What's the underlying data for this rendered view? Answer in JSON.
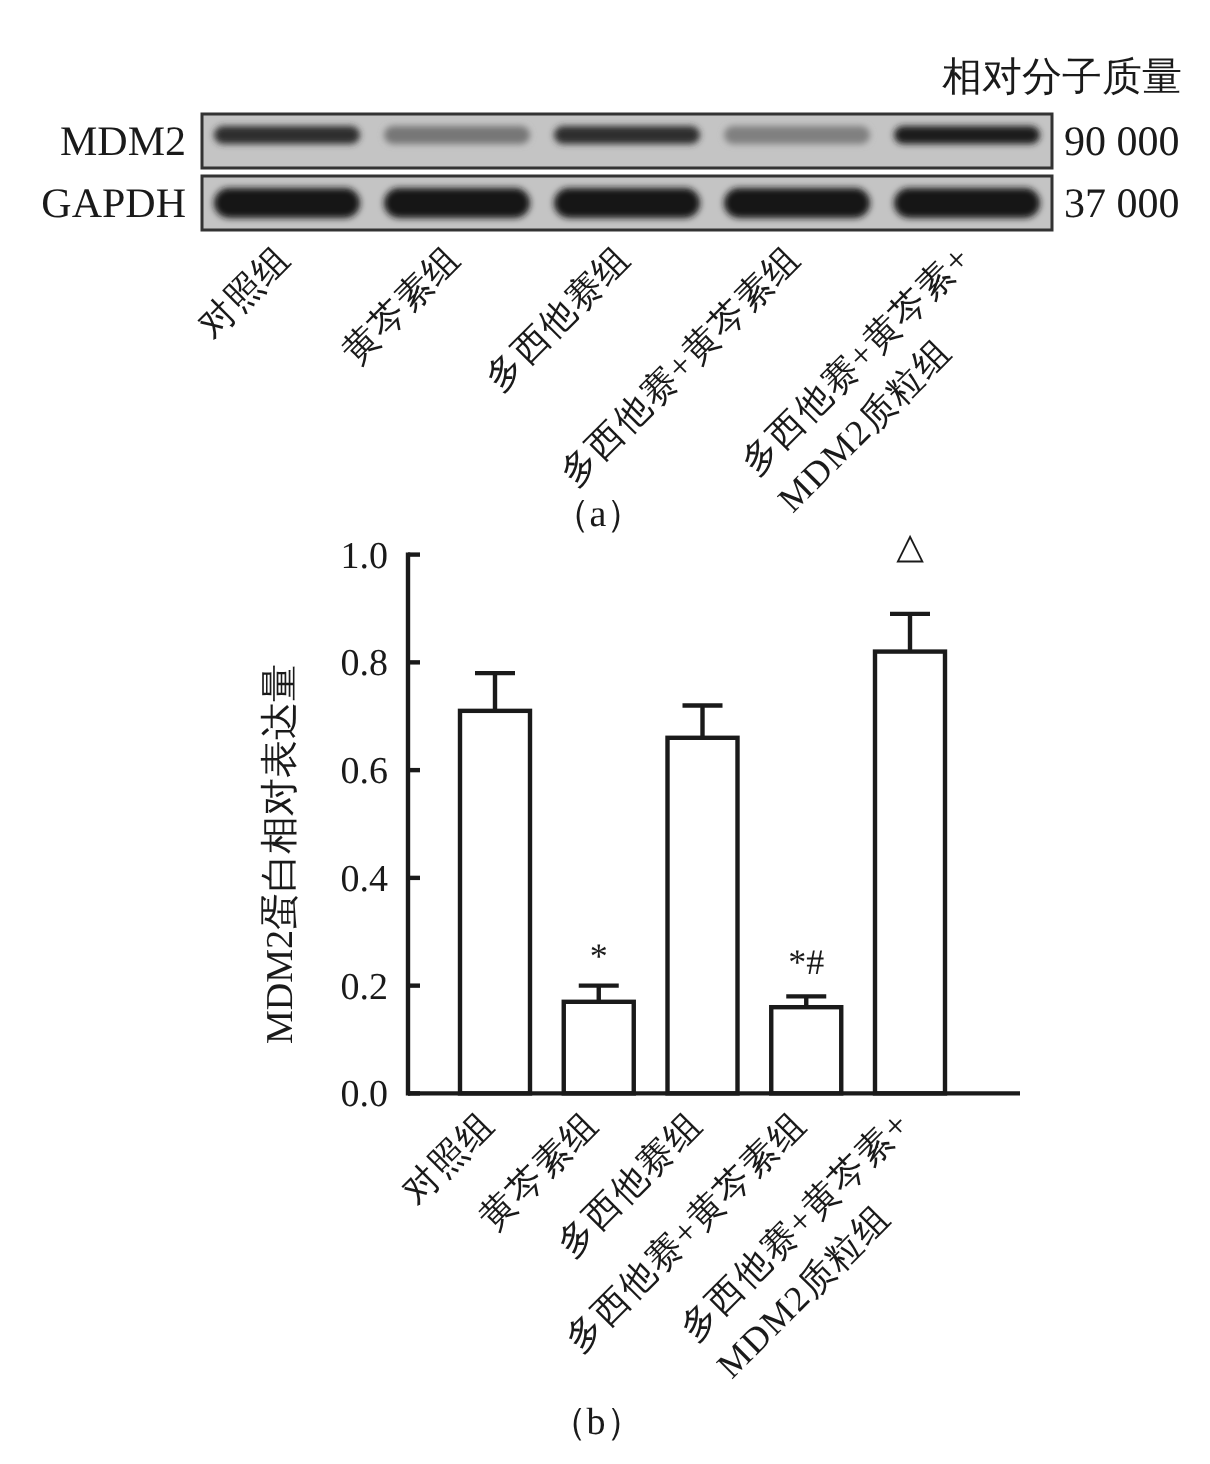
{
  "chart_data": [
    {
      "type": "other",
      "categories": [
        "对照组",
        "黄芩素组",
        "多西他赛组",
        "多西他赛+黄芩素组",
        "多西他赛+黄芩素+\nMDM2质粒组"
      ],
      "y_categories": [
        "MDM2",
        "GAPDH"
      ],
      "y2_categories": [
        "90 000",
        "37 000"
      ],
      "y2label": "相对分子质量",
      "xlabel": "（a）"
    },
    {
      "type": "bar",
      "categories": [
        "对照组",
        "黄芩素组",
        "多西他赛组",
        "多西他赛+黄芩素组",
        "多西他赛+黄芩素+\nMDM2质粒组"
      ],
      "values": [
        0.71,
        0.17,
        0.66,
        0.16,
        0.82
      ],
      "errors": [
        [
          0.71,
          0.78
        ],
        [
          0.17,
          0.2
        ],
        [
          0.66,
          0.72
        ],
        [
          0.16,
          0.18
        ],
        [
          0.82,
          0.89
        ]
      ],
      "color": "#ffffff",
      "ylim": [
        0,
        1.0
      ],
      "yticks": [
        {
          "value": 0,
          "label": "0.0"
        },
        {
          "value": 0.2,
          "label": "0.2"
        },
        {
          "value": 0.4,
          "label": "0.4"
        },
        {
          "value": 0.6,
          "label": "0.6"
        },
        {
          "value": 0.8,
          "label": "0.8"
        },
        {
          "value": 1.0,
          "label": "1.0"
        }
      ],
      "ylabel": "MDM2蛋白相对表达量",
      "xlabel": "（b）",
      "annotations": [
        "*",
        "*#",
        "△"
      ]
    }
  ]
}
